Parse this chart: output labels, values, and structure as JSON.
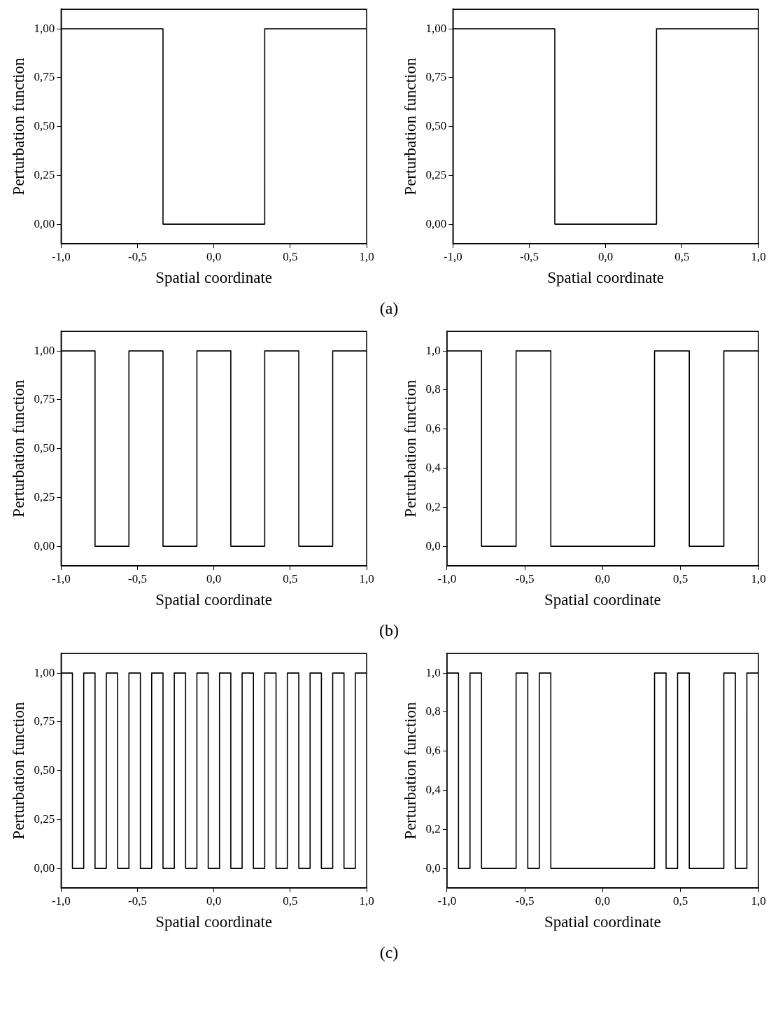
{
  "chart_data": [
    {
      "type": "step",
      "xlabel": "Spatial coordinate",
      "ylabel": "Perturbation function",
      "annotations": [
        "(a)"
      ],
      "marker": "none",
      "legend": false,
      "grid": false,
      "xlim": [
        -1,
        1
      ],
      "xticks": [
        {
          "value": -1,
          "label": "-1,0"
        },
        {
          "value": -0.5,
          "label": "-0,5"
        },
        {
          "value": 0,
          "label": "0,0"
        },
        {
          "value": 0.5,
          "label": "0,5"
        },
        {
          "value": 1,
          "label": "1,0"
        }
      ],
      "ylim": [
        -0.1,
        1.1
      ],
      "yticks": [
        {
          "value": 0,
          "label": "0,00"
        },
        {
          "value": 0.25,
          "label": "0,25"
        },
        {
          "value": 0.5,
          "label": "0,50"
        },
        {
          "value": 0.75,
          "label": "0,75"
        },
        {
          "value": 1,
          "label": "1,00"
        }
      ],
      "series": [
        {
          "color": "#000000",
          "x": [
            -1,
            -0.333,
            0.333,
            1
          ],
          "values": [
            1,
            0,
            1,
            1
          ]
        }
      ]
    },
    {
      "type": "step",
      "xlabel": "Spatial coordinate",
      "ylabel": "Perturbation function",
      "marker": "none",
      "legend": false,
      "grid": false,
      "xlim": [
        -1,
        1
      ],
      "xticks": [
        {
          "value": -1,
          "label": "-1,0"
        },
        {
          "value": -0.5,
          "label": "-0,5"
        },
        {
          "value": 0,
          "label": "0,0"
        },
        {
          "value": 0.5,
          "label": "0,5"
        },
        {
          "value": 1,
          "label": "1,0"
        }
      ],
      "ylim": [
        -0.1,
        1.1
      ],
      "yticks": [
        {
          "value": 0,
          "label": "0,00"
        },
        {
          "value": 0.25,
          "label": "0,25"
        },
        {
          "value": 0.5,
          "label": "0,50"
        },
        {
          "value": 0.75,
          "label": "0,75"
        },
        {
          "value": 1,
          "label": "1,00"
        }
      ],
      "series": [
        {
          "color": "#000000",
          "x": [
            -1,
            -0.333,
            0.333,
            1
          ],
          "values": [
            1,
            0,
            1,
            1
          ]
        }
      ]
    },
    {
      "type": "step",
      "xlabel": "Spatial coordinate",
      "ylabel": "Perturbation function",
      "annotations": [
        "(b)"
      ],
      "marker": "none",
      "legend": false,
      "grid": false,
      "xlim": [
        -1,
        1
      ],
      "xticks": [
        {
          "value": -1,
          "label": "-1,0"
        },
        {
          "value": -0.5,
          "label": "-0,5"
        },
        {
          "value": 0,
          "label": "0,0"
        },
        {
          "value": 0.5,
          "label": "0,5"
        },
        {
          "value": 1,
          "label": "1,0"
        }
      ],
      "ylim": [
        -0.1,
        1.1
      ],
      "yticks": [
        {
          "value": 0,
          "label": "0,00"
        },
        {
          "value": 0.25,
          "label": "0,25"
        },
        {
          "value": 0.5,
          "label": "0,50"
        },
        {
          "value": 0.75,
          "label": "0,75"
        },
        {
          "value": 1,
          "label": "1,00"
        }
      ],
      "series": [
        {
          "color": "#000000",
          "x": [
            -1,
            -0.778,
            -0.556,
            -0.333,
            -0.111,
            0.111,
            0.333,
            0.556,
            0.778,
            1
          ],
          "values": [
            1,
            0,
            1,
            0,
            1,
            0,
            1,
            0,
            1,
            1
          ]
        }
      ]
    },
    {
      "type": "step",
      "xlabel": "Spatial coordinate",
      "ylabel": "Perturbation function",
      "marker": "none",
      "legend": false,
      "grid": false,
      "xlim": [
        -1,
        1
      ],
      "xticks": [
        {
          "value": -1,
          "label": "-1,0"
        },
        {
          "value": -0.5,
          "label": "-0,5"
        },
        {
          "value": 0,
          "label": "0,0"
        },
        {
          "value": 0.5,
          "label": "0,5"
        },
        {
          "value": 1,
          "label": "1,0"
        }
      ],
      "ylim": [
        -0.1,
        1.1
      ],
      "yticks": [
        {
          "value": 0,
          "label": "0,0"
        },
        {
          "value": 0.2,
          "label": "0,2"
        },
        {
          "value": 0.4,
          "label": "0,4"
        },
        {
          "value": 0.6,
          "label": "0,6"
        },
        {
          "value": 0.8,
          "label": "0,8"
        },
        {
          "value": 1,
          "label": "1,0"
        }
      ],
      "series": [
        {
          "color": "#000000",
          "x": [
            -1,
            -0.778,
            -0.556,
            -0.333,
            0.333,
            0.556,
            0.778,
            1
          ],
          "values": [
            1,
            0,
            1,
            0,
            1,
            0,
            1,
            1
          ]
        }
      ]
    },
    {
      "type": "step",
      "xlabel": "Spatial coordinate",
      "ylabel": "Perturbation function",
      "annotations": [
        "(c)"
      ],
      "marker": "none",
      "legend": false,
      "grid": false,
      "xlim": [
        -1,
        1
      ],
      "xticks": [
        {
          "value": -1,
          "label": "-1,0"
        },
        {
          "value": -0.5,
          "label": "-0,5"
        },
        {
          "value": 0,
          "label": "0,0"
        },
        {
          "value": 0.5,
          "label": "0,5"
        },
        {
          "value": 1,
          "label": "1,0"
        }
      ],
      "ylim": [
        -0.1,
        1.1
      ],
      "yticks": [
        {
          "value": 0,
          "label": "0,00"
        },
        {
          "value": 0.25,
          "label": "0,25"
        },
        {
          "value": 0.5,
          "label": "0,50"
        },
        {
          "value": 0.75,
          "label": "0,75"
        },
        {
          "value": 1,
          "label": "1,00"
        }
      ],
      "series": [
        {
          "color": "#000000",
          "x": [
            -1,
            -0.926,
            -0.852,
            -0.778,
            -0.704,
            -0.63,
            -0.556,
            -0.481,
            -0.407,
            -0.333,
            -0.259,
            -0.185,
            -0.111,
            -0.037,
            0.037,
            0.111,
            0.185,
            0.259,
            0.333,
            0.407,
            0.481,
            0.556,
            0.63,
            0.704,
            0.778,
            0.852,
            0.926,
            1
          ],
          "values": [
            1,
            0,
            1,
            0,
            1,
            0,
            1,
            0,
            1,
            0,
            1,
            0,
            1,
            0,
            1,
            0,
            1,
            0,
            1,
            0,
            1,
            0,
            1,
            0,
            1,
            0,
            1,
            1
          ]
        }
      ]
    },
    {
      "type": "step",
      "xlabel": "Spatial coordinate",
      "ylabel": "Perturbation function",
      "marker": "none",
      "legend": false,
      "grid": false,
      "xlim": [
        -1,
        1
      ],
      "xticks": [
        {
          "value": -1,
          "label": "-1,0"
        },
        {
          "value": -0.5,
          "label": "-0,5"
        },
        {
          "value": 0,
          "label": "0,0"
        },
        {
          "value": 0.5,
          "label": "0,5"
        },
        {
          "value": 1,
          "label": "1,0"
        }
      ],
      "ylim": [
        -0.1,
        1.1
      ],
      "yticks": [
        {
          "value": 0,
          "label": "0,0"
        },
        {
          "value": 0.2,
          "label": "0,2"
        },
        {
          "value": 0.4,
          "label": "0,4"
        },
        {
          "value": 0.6,
          "label": "0,6"
        },
        {
          "value": 0.8,
          "label": "0,8"
        },
        {
          "value": 1,
          "label": "1,0"
        }
      ],
      "series": [
        {
          "color": "#000000",
          "x": [
            -1,
            -0.926,
            -0.852,
            -0.778,
            -0.556,
            -0.481,
            -0.407,
            -0.333,
            0.333,
            0.407,
            0.481,
            0.556,
            0.778,
            0.852,
            0.926,
            1
          ],
          "values": [
            1,
            0,
            1,
            0,
            1,
            0,
            1,
            0,
            1,
            0,
            1,
            0,
            1,
            0,
            1,
            1
          ]
        }
      ]
    }
  ]
}
